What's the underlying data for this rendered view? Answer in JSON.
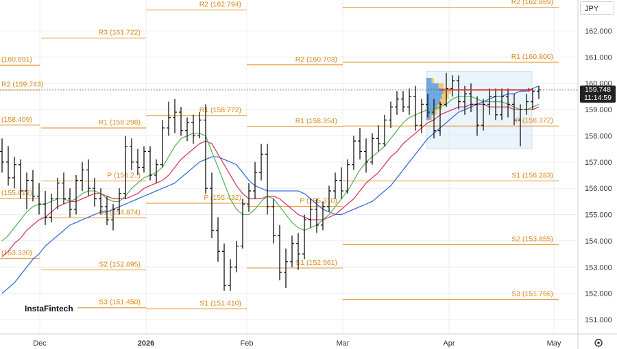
{
  "chart_data": {
    "type": "ohlc",
    "instrument": "USDJPY",
    "currency_label": "JPY",
    "current_price": "159.748",
    "countdown": "11:14:59",
    "watermark": "InstaFintech",
    "y_ticks": [
      "162.000",
      "161.000",
      "160.000",
      "159.000",
      "158.000",
      "157.000",
      "156.000",
      "155.000",
      "154.000",
      "153.000",
      "152.000",
      "151.000"
    ],
    "x_ticks": [
      {
        "label": "Dec",
        "bold": false
      },
      {
        "label": "2026",
        "bold": true
      },
      {
        "label": "Feb",
        "bold": false
      },
      {
        "label": "Mar",
        "bold": false
      },
      {
        "label": "Apr",
        "bold": false
      },
      {
        "label": "May",
        "bold": false
      }
    ],
    "pivot_levels": [
      {
        "label": "(160.691)",
        "value": 160.691,
        "period": "Dec"
      },
      {
        "label": "R2 (159.743)",
        "value": 159.743,
        "period": "Dec"
      },
      {
        "label": "(158.409)",
        "value": 158.409,
        "period": "Dec"
      },
      {
        "label": "(155.612)",
        "value": 155.612,
        "period": "Dec"
      },
      {
        "label": "(153.330)",
        "value": 153.33,
        "period": "Dec"
      },
      {
        "label": "R3 (161.722)",
        "value": 161.722,
        "period": "Jan"
      },
      {
        "label": "R1 (158.298)",
        "value": 158.298,
        "period": "Jan"
      },
      {
        "label": "P (156.2..)",
        "value": 156.28,
        "period": "Jan"
      },
      {
        "label": "S1 (154.874)",
        "value": 154.874,
        "period": "Jan"
      },
      {
        "label": "S2 (152.895)",
        "value": 152.895,
        "period": "Jan"
      },
      {
        "label": "S3 (151.450)",
        "value": 151.45,
        "period": "Jan"
      },
      {
        "label": "R2 (162.794)",
        "value": 162.794,
        "period": "Feb"
      },
      {
        "label": "R1 (158.772)",
        "value": 158.772,
        "period": "Feb"
      },
      {
        "label": "P (155.432)",
        "value": 155.432,
        "period": "Feb"
      },
      {
        "label": "S1 (151.410)",
        "value": 151.41,
        "period": "Feb"
      },
      {
        "label": "R2 (160.703)",
        "value": 160.703,
        "period": "Mar"
      },
      {
        "label": "R1 (158.354)",
        "value": 158.354,
        "period": "Mar"
      },
      {
        "label": "P (155.310)",
        "value": 155.31,
        "period": "Mar"
      },
      {
        "label": "S1 (152.961)",
        "value": 152.961,
        "period": "Mar"
      },
      {
        "label": "R2 (162.889)",
        "value": 162.889,
        "period": "Apr"
      },
      {
        "label": "R1 (160.800)",
        "value": 160.8,
        "period": "Apr"
      },
      {
        "label": "P (158.372)",
        "value": 158.372,
        "period": "Apr"
      },
      {
        "label": "S1 (156.283)",
        "value": 156.283,
        "period": "Apr"
      },
      {
        "label": "S2 (153.855)",
        "value": 153.855,
        "period": "Apr"
      },
      {
        "label": "S3 (151.766)",
        "value": 151.766,
        "period": "Apr"
      }
    ],
    "ohlc": [
      [
        157.4,
        157.9,
        156.6,
        157.0
      ],
      [
        157.0,
        157.6,
        156.1,
        156.4
      ],
      [
        156.4,
        157.2,
        156.0,
        156.9
      ],
      [
        156.9,
        157.1,
        155.6,
        155.9
      ],
      [
        155.9,
        156.6,
        155.2,
        156.3
      ],
      [
        156.3,
        156.7,
        155.5,
        155.7
      ],
      [
        155.7,
        156.2,
        155.0,
        155.4
      ],
      [
        155.4,
        155.9,
        154.6,
        154.9
      ],
      [
        154.9,
        155.8,
        154.7,
        155.6
      ],
      [
        155.6,
        156.4,
        155.2,
        156.2
      ],
      [
        156.2,
        156.6,
        155.4,
        155.6
      ],
      [
        155.6,
        156.0,
        154.9,
        155.2
      ],
      [
        155.2,
        156.5,
        155.0,
        156.3
      ],
      [
        156.3,
        157.0,
        155.9,
        156.7
      ],
      [
        156.7,
        157.1,
        155.7,
        156.0
      ],
      [
        156.0,
        156.4,
        155.3,
        155.6
      ],
      [
        155.6,
        156.0,
        155.0,
        155.3
      ],
      [
        155.3,
        155.7,
        154.6,
        154.8
      ],
      [
        154.8,
        155.4,
        154.4,
        155.2
      ],
      [
        155.2,
        156.0,
        155.0,
        155.8
      ],
      [
        155.8,
        158.0,
        155.6,
        157.6
      ],
      [
        157.6,
        157.9,
        156.7,
        157.0
      ],
      [
        157.0,
        157.5,
        156.5,
        156.8
      ],
      [
        156.8,
        157.6,
        156.6,
        157.4
      ],
      [
        157.4,
        157.6,
        156.3,
        156.5
      ],
      [
        156.5,
        157.1,
        156.2,
        156.9
      ],
      [
        156.9,
        158.6,
        156.8,
        158.3
      ],
      [
        158.3,
        159.3,
        158.0,
        158.7
      ],
      [
        158.7,
        159.4,
        158.1,
        158.9
      ],
      [
        158.9,
        159.1,
        158.0,
        158.2
      ],
      [
        158.2,
        158.7,
        157.8,
        158.5
      ],
      [
        158.5,
        158.8,
        157.7,
        158.0
      ],
      [
        158.0,
        158.9,
        157.9,
        158.6
      ],
      [
        158.6,
        159.2,
        155.8,
        156.0
      ],
      [
        156.0,
        156.6,
        154.1,
        154.4
      ],
      [
        154.4,
        154.9,
        153.2,
        153.6
      ],
      [
        153.6,
        153.9,
        152.1,
        152.3
      ],
      [
        152.3,
        153.3,
        152.1,
        153.0
      ],
      [
        153.0,
        154.0,
        152.8,
        153.8
      ],
      [
        153.8,
        155.6,
        153.7,
        155.4
      ],
      [
        155.4,
        156.2,
        155.1,
        155.9
      ],
      [
        155.9,
        157.0,
        155.6,
        156.6
      ],
      [
        156.6,
        157.7,
        156.3,
        157.3
      ],
      [
        157.3,
        157.7,
        155.0,
        155.3
      ],
      [
        155.3,
        155.6,
        153.9,
        154.2
      ],
      [
        154.2,
        154.6,
        152.5,
        152.8
      ],
      [
        152.8,
        153.7,
        152.2,
        153.2
      ],
      [
        153.2,
        154.2,
        153.0,
        153.9
      ],
      [
        153.9,
        154.3,
        152.9,
        153.5
      ],
      [
        153.5,
        155.0,
        153.3,
        154.8
      ],
      [
        154.8,
        155.6,
        154.5,
        155.2
      ],
      [
        155.2,
        155.6,
        154.3,
        154.6
      ],
      [
        154.6,
        155.5,
        154.4,
        155.3
      ],
      [
        155.3,
        156.1,
        155.1,
        155.9
      ],
      [
        155.9,
        156.6,
        155.6,
        156.3
      ],
      [
        156.3,
        156.8,
        155.6,
        155.9
      ],
      [
        155.9,
        157.1,
        155.8,
        156.9
      ],
      [
        156.9,
        158.0,
        156.7,
        157.8
      ],
      [
        157.8,
        158.3,
        157.1,
        157.4
      ],
      [
        157.4,
        157.9,
        156.6,
        157.0
      ],
      [
        157.0,
        158.1,
        156.9,
        157.9
      ],
      [
        157.9,
        158.4,
        157.4,
        157.7
      ],
      [
        157.7,
        158.8,
        157.6,
        158.6
      ],
      [
        158.6,
        159.3,
        158.3,
        159.1
      ],
      [
        159.1,
        159.7,
        158.8,
        159.4
      ],
      [
        159.4,
        159.7,
        158.9,
        159.1
      ],
      [
        159.1,
        159.8,
        158.8,
        159.5
      ],
      [
        159.5,
        159.9,
        158.2,
        158.4
      ],
      [
        158.4,
        159.4,
        158.1,
        159.2
      ],
      [
        159.2,
        159.6,
        158.7,
        158.9
      ],
      [
        158.9,
        159.4,
        157.9,
        158.2
      ],
      [
        158.2,
        159.3,
        158.0,
        159.2
      ],
      [
        159.2,
        160.4,
        159.1,
        159.8
      ],
      [
        159.8,
        160.3,
        159.5,
        160.1
      ],
      [
        160.1,
        160.3,
        159.0,
        159.3
      ],
      [
        159.3,
        159.9,
        158.8,
        159.6
      ],
      [
        159.6,
        160.0,
        158.9,
        159.2
      ],
      [
        159.2,
        159.5,
        158.0,
        158.4
      ],
      [
        158.4,
        159.4,
        158.2,
        159.2
      ],
      [
        159.2,
        159.8,
        158.8,
        159.5
      ],
      [
        159.5,
        159.8,
        158.6,
        158.8
      ],
      [
        158.8,
        159.8,
        158.6,
        159.5
      ],
      [
        159.5,
        159.8,
        158.7,
        159.2
      ],
      [
        159.2,
        159.6,
        158.4,
        158.6
      ],
      [
        158.6,
        159.2,
        157.6,
        159.0
      ],
      [
        159.0,
        159.6,
        158.8,
        159.3
      ],
      [
        159.3,
        159.8,
        159.0,
        159.7
      ],
      [
        159.7,
        159.9,
        159.4,
        159.748
      ]
    ],
    "ma_green": [
      154.0,
      154.2,
      154.5,
      154.8,
      155.1,
      155.3,
      155.4,
      155.4,
      155.5,
      155.6,
      155.6,
      155.5,
      155.6,
      155.8,
      155.9,
      155.9,
      155.8,
      155.6,
      155.5,
      155.5,
      155.7,
      156.0,
      156.2,
      156.4,
      156.5,
      156.6,
      156.8,
      157.2,
      157.6,
      157.9,
      158.0,
      158.1,
      158.1,
      158.0,
      157.4,
      156.8,
      156.2,
      155.6,
      155.2,
      155.0,
      155.0,
      155.2,
      155.5,
      155.7,
      155.6,
      155.3,
      155.0,
      154.7,
      154.5,
      154.4,
      154.5,
      154.6,
      154.8,
      155.0,
      155.3,
      155.6,
      155.9,
      156.3,
      156.7,
      157.0,
      157.2,
      157.4,
      157.6,
      157.9,
      158.2,
      158.5,
      158.7,
      158.8,
      158.9,
      159.0,
      159.0,
      159.1,
      159.2,
      159.4,
      159.5,
      159.5,
      159.5,
      159.4,
      159.3,
      159.3,
      159.3,
      159.3,
      159.2,
      159.1,
      159.0,
      159.0,
      159.1,
      159.2
    ],
    "ma_red": [
      153.4,
      153.6,
      153.9,
      154.1,
      154.4,
      154.6,
      154.8,
      154.9,
      155.1,
      155.3,
      155.4,
      155.5,
      155.5,
      155.6,
      155.7,
      155.8,
      155.8,
      155.7,
      155.6,
      155.6,
      155.6,
      155.7,
      155.8,
      156.0,
      156.1,
      156.2,
      156.3,
      156.5,
      156.8,
      157.1,
      157.3,
      157.5,
      157.7,
      157.8,
      157.7,
      157.3,
      156.9,
      156.5,
      156.1,
      155.8,
      155.6,
      155.6,
      155.6,
      155.7,
      155.7,
      155.6,
      155.4,
      155.2,
      155.0,
      154.9,
      154.8,
      154.8,
      154.8,
      154.9,
      155.0,
      155.2,
      155.4,
      155.6,
      155.9,
      156.2,
      156.4,
      156.6,
      156.9,
      157.2,
      157.4,
      157.7,
      157.9,
      158.1,
      158.3,
      158.5,
      158.6,
      158.8,
      158.9,
      159.0,
      159.1,
      159.1,
      159.2,
      159.2,
      159.2,
      159.1,
      159.1,
      159.1,
      159.1,
      159.0,
      159.0,
      159.0,
      159.0,
      159.1
    ],
    "ma_blue": [
      152.0,
      152.2,
      152.4,
      152.7,
      153.0,
      153.3,
      153.5,
      153.8,
      154.0,
      154.2,
      154.4,
      154.6,
      154.7,
      154.8,
      154.9,
      155.0,
      155.1,
      155.1,
      155.2,
      155.3,
      155.4,
      155.5,
      155.6,
      155.7,
      155.8,
      155.9,
      156.0,
      156.1,
      156.2,
      156.4,
      156.6,
      156.8,
      157.0,
      157.1,
      157.2,
      157.2,
      157.1,
      157.0,
      156.9,
      156.6,
      156.3,
      156.1,
      156.0,
      155.9,
      155.9,
      155.9,
      155.9,
      155.9,
      155.9,
      155.8,
      155.6,
      155.4,
      155.2,
      155.1,
      155.0,
      155.0,
      155.1,
      155.2,
      155.3,
      155.4,
      155.5,
      155.7,
      155.9,
      156.1,
      156.4,
      156.7,
      157.0,
      157.3,
      157.6,
      157.9,
      158.1,
      158.3,
      158.5,
      158.7,
      158.9,
      159.0,
      159.1,
      159.2,
      159.3,
      159.4,
      159.5,
      159.5,
      159.6,
      159.6,
      159.7,
      159.7,
      159.8,
      159.9
    ],
    "horizontal_line": 159.748,
    "y_range": [
      150.55,
      163.2
    ]
  }
}
